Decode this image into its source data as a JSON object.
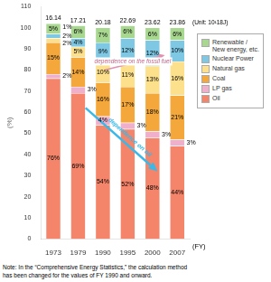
{
  "chart_data": {
    "type": "bar",
    "stacked": true,
    "categories": [
      "1973",
      "1979",
      "1990",
      "1995",
      "2000",
      "2007"
    ],
    "series": [
      {
        "name": "Oil",
        "color": "#f4846a",
        "values": [
          76,
          69,
          54,
          52,
          48,
          44
        ],
        "value_labels": [
          "76%",
          "69%",
          "54%",
          "52%",
          "48%",
          "44%"
        ]
      },
      {
        "name": "LP gas",
        "color": "#f0b0cc",
        "values": [
          2,
          3,
          4,
          3,
          3,
          3
        ],
        "value_labels": [
          "2%",
          "3%",
          "4%",
          "3%",
          "3%",
          "3%"
        ]
      },
      {
        "name": "Coal",
        "color": "#f4a83c",
        "values": [
          15,
          14,
          16,
          17,
          18,
          21
        ],
        "value_labels": [
          "15%",
          "14%",
          "16%",
          "17%",
          "18%",
          "21%"
        ]
      },
      {
        "name": "Natural gas",
        "color": "#fce08c",
        "values": [
          2,
          5,
          10,
          11,
          13,
          16
        ],
        "value_labels": [
          "2%",
          "5%",
          "10%",
          "11%",
          "13%",
          "16%"
        ]
      },
      {
        "name": "Nuclear Power",
        "color": "#7ec8e3",
        "values": [
          2,
          4,
          9,
          12,
          12,
          10
        ],
        "value_labels": [
          "2%",
          "4%",
          "9%",
          "12%",
          "12%",
          "10%"
        ]
      },
      {
        "name": "Renewable /\nNew energy, etc.",
        "color": "#a8d890",
        "values": [
          5,
          6,
          7,
          6,
          6,
          6
        ],
        "value_labels": [
          "5%",
          "6%",
          "7%",
          "6%",
          "6%",
          "6%"
        ]
      }
    ],
    "totals": [
      16.14,
      17.21,
      20.18,
      22.69,
      23.62,
      23.86
    ],
    "ylabel": "(%)",
    "ylim": [
      0,
      110
    ],
    "yticks": [
      0,
      10,
      20,
      30,
      40,
      50,
      60,
      70,
      80,
      90,
      100,
      110
    ],
    "grid": false,
    "legend": "right",
    "data_labels": true,
    "annotations": [
      "(Unit: 10¹18J)",
      "(FY)",
      "dependence on oil",
      "dependence on the fossil fuel",
      "1%",
      "Note: In the “Comprehensive Energy Statistics,” the calculation method",
      "has been changed for the values of FY 1990 and onward."
    ]
  }
}
